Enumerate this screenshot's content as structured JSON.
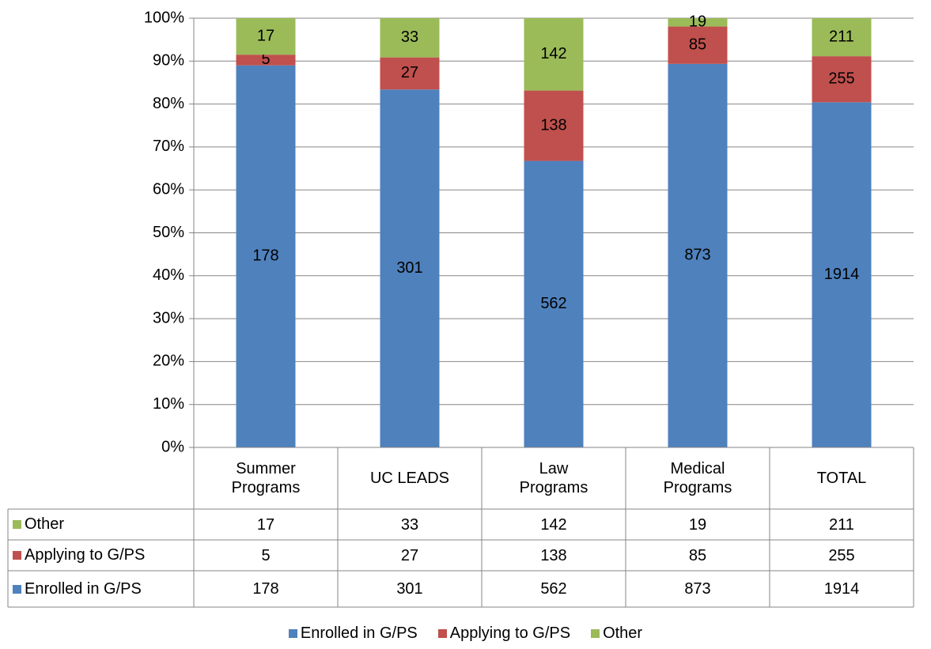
{
  "chart_data": {
    "type": "bar",
    "stacked": "percent",
    "categories": [
      "Summer Programs",
      "UC LEADS",
      "Law Programs",
      "Medical Programs",
      "TOTAL"
    ],
    "series": [
      {
        "name": "Enrolled in G/PS",
        "color": "#4f81bd",
        "values": [
          178,
          301,
          562,
          873,
          1914
        ]
      },
      {
        "name": "Applying to G/PS",
        "color": "#c0504d",
        "values": [
          5,
          27,
          138,
          85,
          255
        ]
      },
      {
        "name": "Other",
        "color": "#9bbb59",
        "values": [
          17,
          33,
          142,
          19,
          211
        ]
      }
    ],
    "ylim": [
      0,
      100
    ],
    "yticks": [
      {
        "value": 0,
        "label": "0%"
      },
      {
        "value": 10,
        "label": "10%"
      },
      {
        "value": 20,
        "label": "20%"
      },
      {
        "value": 30,
        "label": "30%"
      },
      {
        "value": 40,
        "label": "40%"
      },
      {
        "value": 50,
        "label": "50%"
      },
      {
        "value": 60,
        "label": "60%"
      },
      {
        "value": 70,
        "label": "70%"
      },
      {
        "value": 80,
        "label": "80%"
      },
      {
        "value": 90,
        "label": "90%"
      },
      {
        "value": 100,
        "label": "100%"
      }
    ],
    "grid": true
  }
}
